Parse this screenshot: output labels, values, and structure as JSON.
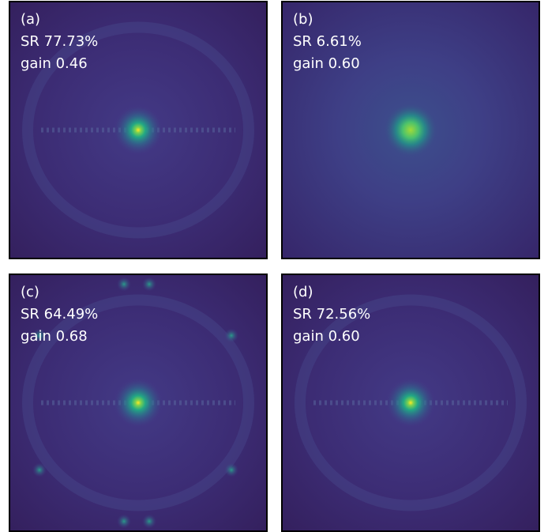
{
  "panels": [
    {
      "label": "(a)",
      "strehl": "SR 77.73%",
      "gain": "gain 0.46"
    },
    {
      "label": "(b)",
      "strehl": "SR 6.61%",
      "gain": "gain 0.60"
    },
    {
      "label": "(c)",
      "strehl": "SR 64.49%",
      "gain": "gain 0.68"
    },
    {
      "label": "(d)",
      "strehl": "SR 72.56%",
      "gain": "gain 0.60"
    }
  ]
}
